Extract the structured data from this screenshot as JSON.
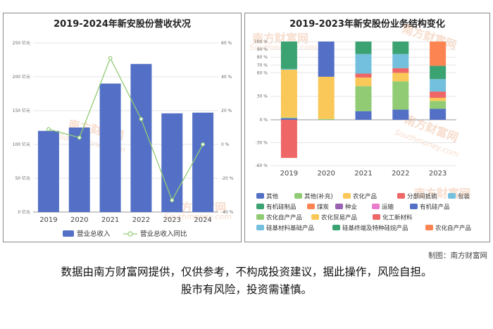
{
  "watermark": {
    "brand": "南方财富网",
    "site": "Southmoney.com"
  },
  "credit": "制图：南方财富网",
  "disclaimer": {
    "line1": "数据由南方财富网提供，仅供参考，不构成投资建议，据此操作，风险自担。",
    "line2": "股市有风险，投资需谨慎。"
  },
  "chart_data": [
    {
      "type": "bar",
      "title": "2019-2024年新安股份营收状况",
      "categories": [
        "2019",
        "2020",
        "2021",
        "2022",
        "2023",
        "2024"
      ],
      "series": [
        {
          "name": "营业总收入",
          "type": "bar",
          "axis": "left",
          "values": [
            120,
            125,
            190,
            219,
            146,
            147
          ]
        },
        {
          "name": "营业总收入同比",
          "type": "line",
          "axis": "right",
          "values": [
            9,
            4,
            51,
            15,
            -33,
            0
          ]
        }
      ],
      "ylim_left": [
        0,
        250
      ],
      "yticks_left": [
        "0 亿元",
        "50 亿元",
        "100 亿元",
        "150 亿元",
        "200 亿元",
        "250 亿元"
      ],
      "ylim_right": [
        -40,
        60
      ],
      "yticks_right": [
        "-40 %",
        "-20 %",
        "0 %",
        "20 %",
        "40 %",
        "60 %"
      ],
      "legend": "bottom",
      "colors": {
        "bar": "#5470c6",
        "line": "#91cc75"
      }
    },
    {
      "type": "bar",
      "stacked": true,
      "title": "2019-2023年新安股份业务结构变化",
      "categories": [
        "2019",
        "2020",
        "2021",
        "2022",
        "2023"
      ],
      "ylim": [
        -60,
        100
      ],
      "yticks": [
        "-60 %",
        "-30 %",
        "0 %",
        "30 %",
        "60 %",
        "70 %",
        "80 %",
        "90 %",
        "100 %"
      ],
      "series": [
        {
          "name": "其他",
          "color": "#5470c6",
          "values": [
            2,
            0,
            0,
            0,
            0
          ]
        },
        {
          "name": "其他(补充)",
          "color": "#91cc75",
          "values": [
            1,
            1,
            0,
            0,
            0
          ]
        },
        {
          "name": "农化产品",
          "color": "#fac858",
          "values": [
            61,
            54,
            0,
            0,
            0
          ]
        },
        {
          "name": "分部间抵销",
          "color": "#ee6666",
          "values": [
            -50,
            0,
            0,
            0,
            0
          ]
        },
        {
          "name": "包装",
          "color": "#73c0de",
          "values": [
            1,
            0,
            0,
            0,
            0
          ]
        },
        {
          "name": "有机硅制品",
          "color": "#3ba272",
          "values": [
            35,
            0,
            0,
            0,
            0
          ]
        },
        {
          "name": "煤炭",
          "color": "#fc8452",
          "values": [
            0,
            0,
            0,
            0,
            0
          ]
        },
        {
          "name": "种业",
          "color": "#9a60b4",
          "values": [
            0,
            0,
            0,
            0,
            0
          ]
        },
        {
          "name": "运输",
          "color": "#ea7ccc",
          "values": [
            0,
            0,
            0,
            0,
            0
          ]
        },
        {
          "name": "有机硅产品",
          "color": "#5470c6",
          "values": [
            0,
            45,
            11,
            13,
            14
          ]
        },
        {
          "name": "农化自产产品",
          "color": "#91cc75",
          "values": [
            0,
            0,
            32,
            36,
            10
          ]
        },
        {
          "name": "农化贸易产品",
          "color": "#fac858",
          "values": [
            0,
            0,
            11,
            11,
            4
          ]
        },
        {
          "name": "化工新材料",
          "color": "#ee6666",
          "values": [
            0,
            0,
            5,
            6,
            8
          ]
        },
        {
          "name": "硅基材料基础产品",
          "color": "#73c0de",
          "values": [
            0,
            0,
            25,
            18,
            16
          ]
        },
        {
          "name": "硅基终端及特种硅烷产品",
          "color": "#3ba272",
          "values": [
            0,
            0,
            16,
            16,
            17
          ]
        },
        {
          "name": "农化自产产品",
          "color": "#fc8452",
          "values": [
            0,
            0,
            0,
            0,
            31
          ]
        }
      ],
      "legend": "bottom"
    }
  ]
}
